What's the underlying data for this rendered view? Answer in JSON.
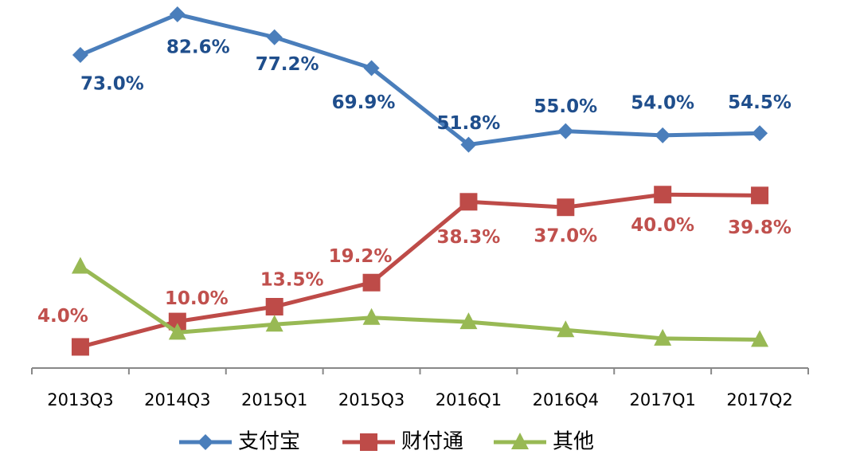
{
  "chart_data": {
    "type": "line",
    "categories": [
      "2013Q3",
      "2014Q3",
      "2015Q1",
      "2015Q3",
      "2016Q1",
      "2016Q4",
      "2017Q1",
      "2017Q2"
    ],
    "ylim": [
      -1,
      86
    ],
    "series": [
      {
        "name": "支付宝",
        "color": "#4a7ebb",
        "label_color": "#1f4e8c",
        "marker": "diamond",
        "values": [
          73.0,
          82.6,
          77.2,
          69.9,
          51.8,
          55.0,
          54.0,
          54.5
        ],
        "value_labels": [
          "73.0%",
          "82.6%",
          "77.2%",
          "69.9%",
          "51.8%",
          "55.0%",
          "54.0%",
          "54.5%"
        ]
      },
      {
        "name": "财付通",
        "color": "#be4b48",
        "label_color": "#c0504d",
        "marker": "square",
        "values": [
          4.0,
          10.0,
          13.5,
          19.2,
          38.3,
          37.0,
          40.0,
          39.8
        ],
        "value_labels": [
          "4.0%",
          "10.0%",
          "13.5%",
          "19.2%",
          "38.3%",
          "37.0%",
          "40.0%",
          "39.8%"
        ]
      },
      {
        "name": "其他",
        "color": "#98b954",
        "marker": "triangle",
        "values": [
          23.0,
          7.4,
          9.3,
          10.9,
          9.9,
          8.0,
          6.0,
          5.7
        ]
      }
    ]
  }
}
